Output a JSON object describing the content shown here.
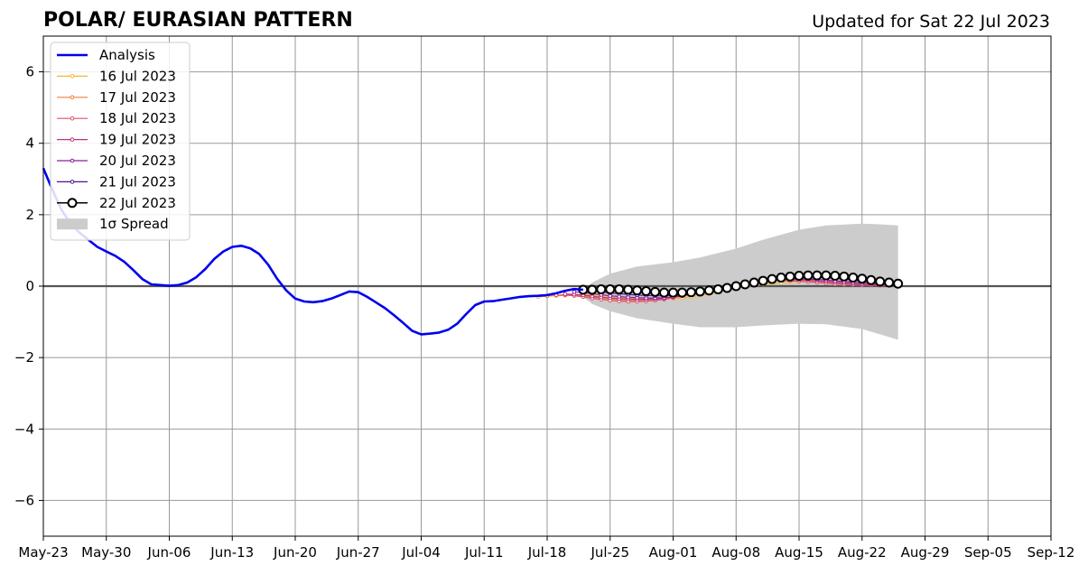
{
  "chart_data": {
    "type": "line",
    "title": "POLAR/ EURASIAN  PATTERN",
    "subtitle": "Updated for Sat 22 Jul 2023",
    "xlabel": "",
    "ylabel": "",
    "x_axis": {
      "start": "2023-05-23",
      "end": "2023-09-12",
      "tick_dates": [
        "2023-05-23",
        "2023-05-30",
        "2023-06-06",
        "2023-06-13",
        "2023-06-20",
        "2023-06-27",
        "2023-07-04",
        "2023-07-11",
        "2023-07-18",
        "2023-07-25",
        "2023-08-01",
        "2023-08-08",
        "2023-08-15",
        "2023-08-22",
        "2023-08-29",
        "2023-09-05",
        "2023-09-12"
      ],
      "tick_labels": [
        "May-23",
        "May-30",
        "Jun-06",
        "Jun-13",
        "Jun-20",
        "Jun-27",
        "Jul-04",
        "Jul-11",
        "Jul-18",
        "Jul-25",
        "Aug-01",
        "Aug-08",
        "Aug-15",
        "Aug-22",
        "Aug-29",
        "Sep-05",
        "Sep-12"
      ]
    },
    "ylim": [
      -7,
      7
    ],
    "y_ticks": [
      -6,
      -4,
      -2,
      0,
      2,
      4,
      6
    ],
    "y_tick_labels": [
      "−6",
      "−4",
      "−2",
      "0",
      "2",
      "4",
      "6"
    ],
    "grid": true,
    "legend_position": "top-left",
    "analysis": {
      "name": "Analysis",
      "color": "#0000ee",
      "dates": [
        "2023-05-23",
        "2023-05-24",
        "2023-05-25",
        "2023-05-26",
        "2023-05-27",
        "2023-05-28",
        "2023-05-29",
        "2023-05-30",
        "2023-05-31",
        "2023-06-01",
        "2023-06-02",
        "2023-06-03",
        "2023-06-04",
        "2023-06-05",
        "2023-06-06",
        "2023-06-07",
        "2023-06-08",
        "2023-06-09",
        "2023-06-10",
        "2023-06-11",
        "2023-06-12",
        "2023-06-13",
        "2023-06-14",
        "2023-06-15",
        "2023-06-16",
        "2023-06-17",
        "2023-06-18",
        "2023-06-19",
        "2023-06-20",
        "2023-06-21",
        "2023-06-22",
        "2023-06-23",
        "2023-06-24",
        "2023-06-25",
        "2023-06-26",
        "2023-06-27",
        "2023-06-28",
        "2023-06-29",
        "2023-06-30",
        "2023-07-01",
        "2023-07-02",
        "2023-07-03",
        "2023-07-04",
        "2023-07-05",
        "2023-07-06",
        "2023-07-07",
        "2023-07-08",
        "2023-07-09",
        "2023-07-10",
        "2023-07-11",
        "2023-07-12",
        "2023-07-13",
        "2023-07-14",
        "2023-07-15",
        "2023-07-16",
        "2023-07-17",
        "2023-07-18",
        "2023-07-19",
        "2023-07-20",
        "2023-07-21",
        "2023-07-22"
      ],
      "values": [
        3.3,
        2.7,
        2.15,
        1.75,
        1.5,
        1.3,
        1.1,
        0.97,
        0.85,
        0.68,
        0.45,
        0.2,
        0.05,
        0.03,
        0.01,
        0.03,
        0.1,
        0.25,
        0.48,
        0.76,
        0.97,
        1.1,
        1.13,
        1.06,
        0.9,
        0.6,
        0.2,
        -0.12,
        -0.35,
        -0.43,
        -0.45,
        -0.42,
        -0.35,
        -0.25,
        -0.15,
        -0.17,
        -0.3,
        -0.46,
        -0.62,
        -0.82,
        -1.03,
        -1.25,
        -1.35,
        -1.33,
        -1.3,
        -1.22,
        -1.05,
        -0.78,
        -0.53,
        -0.43,
        -0.42,
        -0.38,
        -0.34,
        -0.3,
        -0.28,
        -0.27,
        -0.25,
        -0.2,
        -0.13,
        -0.08,
        -0.1
      ]
    },
    "forecasts": [
      {
        "name": "16 Jul 2023",
        "color": "#f7b731",
        "start": "2023-07-17",
        "values": [
          -0.3,
          -0.28,
          -0.27,
          -0.26,
          -0.25,
          -0.24,
          -0.25,
          -0.27,
          -0.29,
          -0.31,
          -0.33,
          -0.34,
          -0.35,
          -0.36,
          -0.36,
          -0.35,
          -0.33,
          -0.3,
          -0.26,
          -0.22,
          -0.17,
          -0.12,
          -0.07,
          -0.02,
          0.02,
          0.05,
          0.08,
          0.1,
          0.12,
          0.13,
          0.14,
          0.14,
          0.13,
          0.12,
          0.1,
          0.08,
          0.06,
          0.05,
          0.04,
          0.03
        ]
      },
      {
        "name": "17 Jul 2023",
        "color": "#f07f3c",
        "start": "2023-07-18",
        "values": [
          -0.27,
          -0.26,
          -0.25,
          -0.25,
          -0.27,
          -0.3,
          -0.33,
          -0.36,
          -0.38,
          -0.39,
          -0.4,
          -0.4,
          -0.39,
          -0.37,
          -0.33,
          -0.28,
          -0.23,
          -0.17,
          -0.11,
          -0.05,
          0.0,
          0.05,
          0.09,
          0.12,
          0.15,
          0.17,
          0.18,
          0.18,
          0.17,
          0.16,
          0.14,
          0.11,
          0.09,
          0.07,
          0.05,
          0.04,
          0.03,
          0.02,
          0.02
        ]
      },
      {
        "name": "18 Jul 2023",
        "color": "#e05068",
        "start": "2023-07-19",
        "values": [
          -0.25,
          -0.25,
          -0.27,
          -0.3,
          -0.34,
          -0.37,
          -0.4,
          -0.42,
          -0.43,
          -0.43,
          -0.42,
          -0.4,
          -0.37,
          -0.32,
          -0.27,
          -0.21,
          -0.15,
          -0.09,
          -0.03,
          0.02,
          0.06,
          0.1,
          0.13,
          0.15,
          0.16,
          0.16,
          0.15,
          0.14,
          0.12,
          0.1,
          0.08,
          0.06,
          0.05,
          0.04,
          0.03,
          0.03,
          0.02,
          0.02
        ]
      },
      {
        "name": "19 Jul 2023",
        "color": "#b83385",
        "start": "2023-07-20",
        "values": [
          -0.22,
          -0.23,
          -0.25,
          -0.28,
          -0.31,
          -0.33,
          -0.35,
          -0.36,
          -0.37,
          -0.37,
          -0.36,
          -0.34,
          -0.3,
          -0.26,
          -0.21,
          -0.15,
          -0.1,
          -0.04,
          0.01,
          0.06,
          0.1,
          0.13,
          0.16,
          0.18,
          0.19,
          0.19,
          0.18,
          0.17,
          0.15,
          0.13,
          0.11,
          0.09,
          0.07,
          0.05,
          0.04,
          0.03,
          0.03
        ]
      },
      {
        "name": "20 Jul 2023",
        "color": "#8a1fa0",
        "start": "2023-07-21",
        "values": [
          -0.16,
          -0.18,
          -0.21,
          -0.24,
          -0.27,
          -0.29,
          -0.31,
          -0.32,
          -0.33,
          -0.33,
          -0.32,
          -0.3,
          -0.27,
          -0.23,
          -0.18,
          -0.13,
          -0.08,
          -0.03,
          0.02,
          0.07,
          0.11,
          0.15,
          0.18,
          0.2,
          0.21,
          0.21,
          0.2,
          0.19,
          0.17,
          0.15,
          0.13,
          0.11,
          0.09,
          0.07,
          0.05,
          0.04
        ]
      },
      {
        "name": "21 Jul 2023",
        "color": "#4a148c",
        "start": "2023-07-22",
        "values": [
          -0.12,
          -0.14,
          -0.16,
          -0.19,
          -0.21,
          -0.23,
          -0.25,
          -0.26,
          -0.27,
          -0.27,
          -0.26,
          -0.24,
          -0.21,
          -0.17,
          -0.13,
          -0.08,
          -0.03,
          0.02,
          0.07,
          0.12,
          0.16,
          0.2,
          0.23,
          0.25,
          0.26,
          0.26,
          0.25,
          0.24,
          0.22,
          0.2,
          0.17,
          0.14,
          0.11,
          0.09,
          0.07
        ]
      },
      {
        "name": "22 Jul 2023",
        "color": "#000000",
        "marker_face": "#ffffff",
        "start": "2023-07-22",
        "values": [
          -0.1,
          -0.1,
          -0.09,
          -0.09,
          -0.09,
          -0.1,
          -0.12,
          -0.14,
          -0.16,
          -0.18,
          -0.18,
          -0.18,
          -0.17,
          -0.15,
          -0.12,
          -0.09,
          -0.05,
          0.0,
          0.05,
          0.1,
          0.15,
          0.2,
          0.24,
          0.27,
          0.29,
          0.3,
          0.3,
          0.3,
          0.29,
          0.27,
          0.24,
          0.21,
          0.17,
          0.13,
          0.1,
          0.07
        ]
      }
    ],
    "spread": {
      "name": "1σ Spread",
      "color": "#cccccc",
      "dates": [
        "2023-07-22",
        "2023-07-23",
        "2023-07-25",
        "2023-07-28",
        "2023-08-01",
        "2023-08-04",
        "2023-08-08",
        "2023-08-11",
        "2023-08-15",
        "2023-08-18",
        "2023-08-22",
        "2023-08-24",
        "2023-08-26"
      ],
      "upper": [
        -0.1,
        0.1,
        0.35,
        0.55,
        0.67,
        0.8,
        1.05,
        1.3,
        1.58,
        1.7,
        1.75,
        1.73,
        1.7
      ],
      "lower": [
        -0.3,
        -0.5,
        -0.7,
        -0.9,
        -1.05,
        -1.15,
        -1.15,
        -1.1,
        -1.05,
        -1.07,
        -1.2,
        -1.35,
        -1.5
      ]
    },
    "zero_line_color": "#555555",
    "grid_color": "#999999"
  }
}
